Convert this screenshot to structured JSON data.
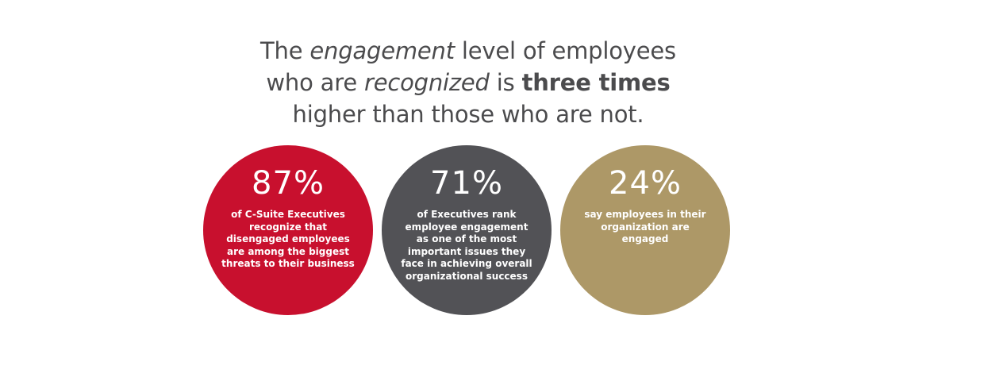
{
  "headline": {
    "part1": "The ",
    "em1": "engagement",
    "part2": " level of employees",
    "part3": "who are ",
    "em2": "recognized",
    "part4": " is ",
    "strong": "three times",
    "part5": "higher than those who are not."
  },
  "chart_data": {
    "type": "table",
    "title": "The engagement level of employees who are recognized is three times higher than those who are not.",
    "stats": [
      {
        "value": 87,
        "label": "87%",
        "description": "of C-Suite Executives recognize that disengaged employees are among the biggest threats to their business",
        "color": "#c8102e"
      },
      {
        "value": 71,
        "label": "71%",
        "description": "of Executives rank employee engagement as one of the most important issues they face in achieving overall organizational success",
        "color": "#525256"
      },
      {
        "value": 24,
        "label": "24%",
        "description": "say employees in their organization are engaged",
        "color": "#ad9867"
      }
    ]
  }
}
